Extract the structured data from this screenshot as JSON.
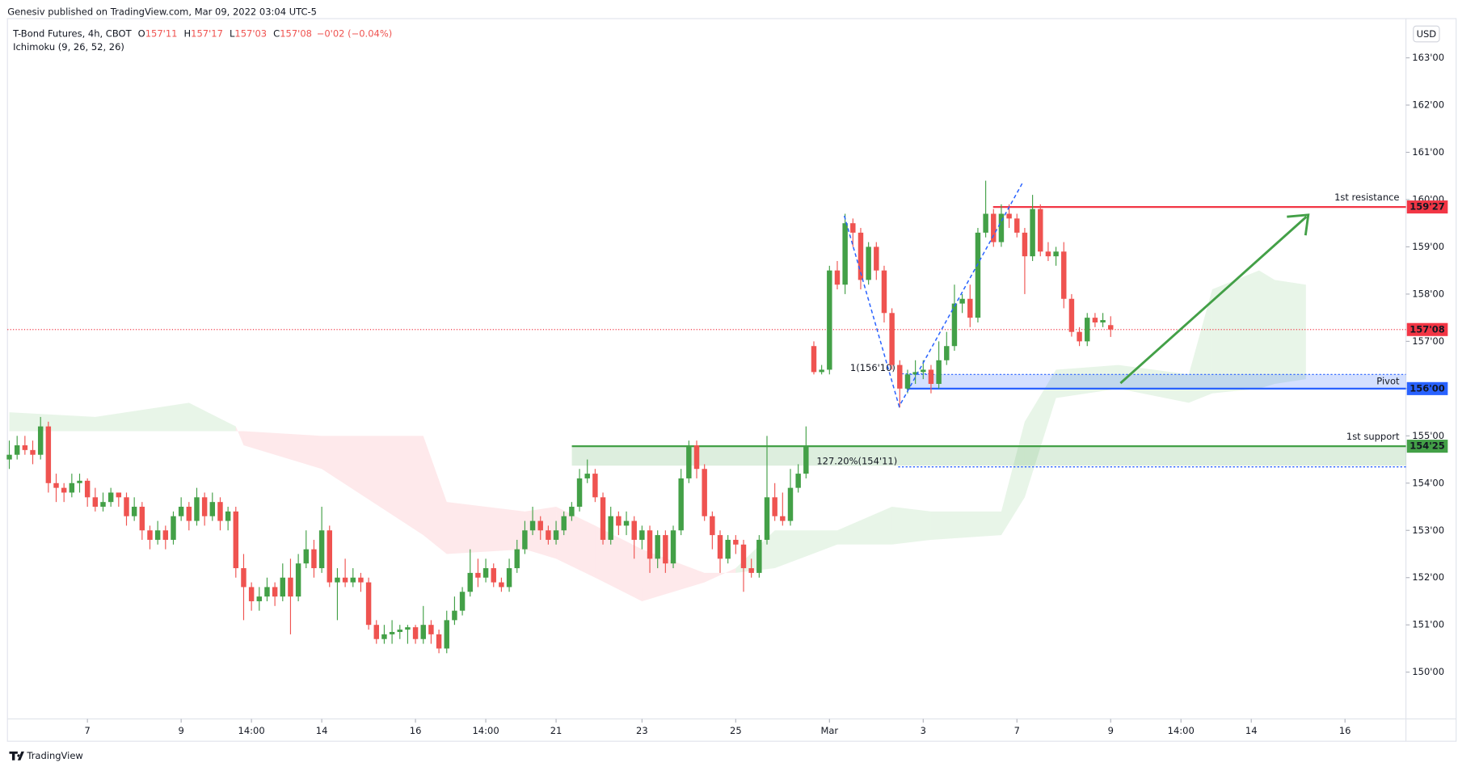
{
  "header": {
    "publisher": "Genesiv published on TradingView.com, Mar 09, 2022 03:04 UTC-5",
    "currency": "USD",
    "footer": "TradingView"
  },
  "chart_data": {
    "type": "candlestick",
    "title": "T-Bond Futures, 4h, CBOT",
    "ohlc": [
      {
        "key": "O",
        "value": "157'11"
      },
      {
        "key": "H",
        "value": "157'17"
      },
      {
        "key": "L",
        "value": "157'03"
      },
      {
        "key": "C",
        "value": "157'08"
      }
    ],
    "change": "−0'02 (−0.04%)",
    "indicator": "Ichimoku (9, 26, 52, 26)",
    "up_color": "#43a047",
    "down_color": "#ef5350",
    "xlim": [
      -0.24,
      178.8
    ],
    "ylim": [
      149.01,
      163.83
    ],
    "xticks": [
      {
        "value": 10,
        "label": "7"
      },
      {
        "value": 22,
        "label": "9"
      },
      {
        "value": 31,
        "label": "14:00"
      },
      {
        "value": 40,
        "label": "14"
      },
      {
        "value": 52,
        "label": "16"
      },
      {
        "value": 61,
        "label": "14:00"
      },
      {
        "value": 70,
        "label": "21"
      },
      {
        "value": 81,
        "label": "23"
      },
      {
        "value": 93,
        "label": "25"
      },
      {
        "value": 105,
        "label": "Mar"
      },
      {
        "value": 117,
        "label": "3"
      },
      {
        "value": 129,
        "label": "7"
      },
      {
        "value": 141,
        "label": "9"
      },
      {
        "value": 150,
        "label": "14:00"
      },
      {
        "value": 159,
        "label": "14"
      },
      {
        "value": 171,
        "label": "16"
      }
    ],
    "yticks": [
      {
        "value": 150,
        "label": "150'00"
      },
      {
        "value": 151,
        "label": "151'00"
      },
      {
        "value": 152,
        "label": "152'00"
      },
      {
        "value": 153,
        "label": "153'00"
      },
      {
        "value": 154,
        "label": "154'00"
      },
      {
        "value": 155,
        "label": "155'00"
      },
      {
        "value": 156,
        "label": "156'00"
      },
      {
        "value": 157,
        "label": "157'00"
      },
      {
        "value": 158,
        "label": "158'00"
      },
      {
        "value": 159,
        "label": "159'00"
      },
      {
        "value": 160,
        "label": "160'00"
      },
      {
        "value": 161,
        "label": "161'00"
      },
      {
        "value": 162,
        "label": "162'00"
      },
      {
        "value": 163,
        "label": "163'00"
      }
    ],
    "candles": [
      [
        154.5,
        154.9,
        154.3,
        154.6
      ],
      [
        154.6,
        155.0,
        154.5,
        154.8
      ],
      [
        154.8,
        155.0,
        154.6,
        154.7
      ],
      [
        154.7,
        154.9,
        154.4,
        154.6
      ],
      [
        154.6,
        155.4,
        154.5,
        155.2
      ],
      [
        155.2,
        155.3,
        153.8,
        154.0
      ],
      [
        154.0,
        154.2,
        153.6,
        153.9
      ],
      [
        153.9,
        154.0,
        153.6,
        153.8
      ],
      [
        153.8,
        154.2,
        153.7,
        154.0
      ],
      [
        154.0,
        154.2,
        153.8,
        154.05
      ],
      [
        154.05,
        154.1,
        153.5,
        153.7
      ],
      [
        153.7,
        153.9,
        153.4,
        153.5
      ],
      [
        153.5,
        153.8,
        153.4,
        153.6
      ],
      [
        153.6,
        153.9,
        153.5,
        153.8
      ],
      [
        153.8,
        153.8,
        153.5,
        153.7
      ],
      [
        153.7,
        153.8,
        153.1,
        153.3
      ],
      [
        153.3,
        153.7,
        153.2,
        153.5
      ],
      [
        153.5,
        153.6,
        152.8,
        153.0
      ],
      [
        153.0,
        153.1,
        152.6,
        152.8
      ],
      [
        152.8,
        153.2,
        152.7,
        153.0
      ],
      [
        153.0,
        153.1,
        152.6,
        152.8
      ],
      [
        152.8,
        153.4,
        152.7,
        153.3
      ],
      [
        153.3,
        153.7,
        153.2,
        153.5
      ],
      [
        153.5,
        153.6,
        153.0,
        153.2
      ],
      [
        153.2,
        153.9,
        153.1,
        153.7
      ],
      [
        153.7,
        153.8,
        153.1,
        153.3
      ],
      [
        153.3,
        153.8,
        153.2,
        153.6
      ],
      [
        153.6,
        153.7,
        153.0,
        153.2
      ],
      [
        153.2,
        153.5,
        153.0,
        153.4
      ],
      [
        153.4,
        153.5,
        152.0,
        152.2
      ],
      [
        152.2,
        152.5,
        151.1,
        151.8
      ],
      [
        151.8,
        151.9,
        151.3,
        151.5
      ],
      [
        151.5,
        151.8,
        151.3,
        151.6
      ],
      [
        151.6,
        152.0,
        151.5,
        151.8
      ],
      [
        151.8,
        151.9,
        151.4,
        151.6
      ],
      [
        151.6,
        152.3,
        151.5,
        152.0
      ],
      [
        152.0,
        152.4,
        150.8,
        151.6
      ],
      [
        151.6,
        152.5,
        151.5,
        152.3
      ],
      [
        152.3,
        153.0,
        152.2,
        152.6
      ],
      [
        152.6,
        152.8,
        152.0,
        152.2
      ],
      [
        152.2,
        153.5,
        152.1,
        153.0
      ],
      [
        153.0,
        153.1,
        151.8,
        151.9
      ],
      [
        151.9,
        152.2,
        151.1,
        152.0
      ],
      [
        152.0,
        152.4,
        151.8,
        151.9
      ],
      [
        151.9,
        152.2,
        151.8,
        152.0
      ],
      [
        152.0,
        152.1,
        151.7,
        151.9
      ],
      [
        151.9,
        152.0,
        150.9,
        151.0
      ],
      [
        151.0,
        151.1,
        150.6,
        150.7
      ],
      [
        150.7,
        151.0,
        150.6,
        150.8
      ],
      [
        150.8,
        151.1,
        150.6,
        150.85
      ],
      [
        150.85,
        151.0,
        150.7,
        150.9
      ],
      [
        150.9,
        151.0,
        150.6,
        150.95
      ],
      [
        150.95,
        151.0,
        150.6,
        150.7
      ],
      [
        150.7,
        151.4,
        150.6,
        151.0
      ],
      [
        151.0,
        151.1,
        150.6,
        150.8
      ],
      [
        150.8,
        150.9,
        150.4,
        150.5
      ],
      [
        150.5,
        151.3,
        150.4,
        151.1
      ],
      [
        151.1,
        151.6,
        151.0,
        151.3
      ],
      [
        151.3,
        151.8,
        151.2,
        151.7
      ],
      [
        151.7,
        152.6,
        151.6,
        152.1
      ],
      [
        152.1,
        152.4,
        151.8,
        152.0
      ],
      [
        152.0,
        152.4,
        151.9,
        152.2
      ],
      [
        152.2,
        152.3,
        151.8,
        151.9
      ],
      [
        151.9,
        152.0,
        151.7,
        151.8
      ],
      [
        151.8,
        152.4,
        151.7,
        152.2
      ],
      [
        152.2,
        152.8,
        152.1,
        152.6
      ],
      [
        152.6,
        153.2,
        152.5,
        153.0
      ],
      [
        153.0,
        153.5,
        152.9,
        153.2
      ],
      [
        153.2,
        153.3,
        152.8,
        153.0
      ],
      [
        153.0,
        153.1,
        152.7,
        152.8
      ],
      [
        152.8,
        153.2,
        152.7,
        153.0
      ],
      [
        153.0,
        153.4,
        152.9,
        153.3
      ],
      [
        153.3,
        153.6,
        153.2,
        153.5
      ],
      [
        153.5,
        154.3,
        153.4,
        154.1
      ],
      [
        154.1,
        154.5,
        154.0,
        154.2
      ],
      [
        154.2,
        154.3,
        153.6,
        153.7
      ],
      [
        153.7,
        153.8,
        152.7,
        152.8
      ],
      [
        152.8,
        153.5,
        152.7,
        153.3
      ],
      [
        153.3,
        153.4,
        152.9,
        153.1
      ],
      [
        153.1,
        153.4,
        152.9,
        153.2
      ],
      [
        153.2,
        153.3,
        152.4,
        152.8
      ],
      [
        152.8,
        153.1,
        152.6,
        153.0
      ],
      [
        153.0,
        153.1,
        152.1,
        152.4
      ],
      [
        152.4,
        153.0,
        152.2,
        152.9
      ],
      [
        152.9,
        153.0,
        152.1,
        152.3
      ],
      [
        152.3,
        153.1,
        152.2,
        153.0
      ],
      [
        153.0,
        154.3,
        152.9,
        154.1
      ],
      [
        154.1,
        154.9,
        154.0,
        154.8
      ],
      [
        154.8,
        154.9,
        154.1,
        154.3
      ],
      [
        154.3,
        154.4,
        153.2,
        153.3
      ],
      [
        153.3,
        153.4,
        152.6,
        152.9
      ],
      [
        152.9,
        153.0,
        152.1,
        152.4
      ],
      [
        152.4,
        152.9,
        152.3,
        152.8
      ],
      [
        152.8,
        152.9,
        152.5,
        152.7
      ],
      [
        152.7,
        152.8,
        151.7,
        152.2
      ],
      [
        152.2,
        152.4,
        152.0,
        152.1
      ],
      [
        152.1,
        152.9,
        152.0,
        152.8
      ],
      [
        152.8,
        155.0,
        152.7,
        153.7
      ],
      [
        153.7,
        154.0,
        153.2,
        153.3
      ],
      [
        153.3,
        153.8,
        153.1,
        153.2
      ],
      [
        153.2,
        154.3,
        153.1,
        153.9
      ],
      [
        153.9,
        154.4,
        153.8,
        154.2
      ],
      [
        154.2,
        155.2,
        154.1,
        154.8
      ],
      [
        156.9,
        157.0,
        156.3,
        156.35
      ],
      [
        156.35,
        156.5,
        156.3,
        156.4
      ],
      [
        156.4,
        158.6,
        156.3,
        158.5
      ],
      [
        158.5,
        158.7,
        158.1,
        158.2
      ],
      [
        158.2,
        159.7,
        158.0,
        159.5
      ],
      [
        159.5,
        159.6,
        159.0,
        159.3
      ],
      [
        159.3,
        159.4,
        158.1,
        158.3
      ],
      [
        158.3,
        159.1,
        158.2,
        159.0
      ],
      [
        159.0,
        159.1,
        158.3,
        158.5
      ],
      [
        158.5,
        158.6,
        157.4,
        157.6
      ],
      [
        157.6,
        157.7,
        156.4,
        156.5
      ],
      [
        156.5,
        156.6,
        155.6,
        156.0
      ],
      [
        156.0,
        156.4,
        155.9,
        156.3
      ],
      [
        156.3,
        156.6,
        156.1,
        156.35
      ],
      [
        156.35,
        156.6,
        156.2,
        156.4
      ],
      [
        156.4,
        156.5,
        155.9,
        156.1
      ],
      [
        156.1,
        157.0,
        156.0,
        156.6
      ],
      [
        156.6,
        157.2,
        156.5,
        156.9
      ],
      [
        156.9,
        158.2,
        156.8,
        157.8
      ],
      [
        157.8,
        158.0,
        157.6,
        157.9
      ],
      [
        157.9,
        158.2,
        157.3,
        157.5
      ],
      [
        157.5,
        159.4,
        157.4,
        159.3
      ],
      [
        159.3,
        160.4,
        159.2,
        159.7
      ],
      [
        159.7,
        159.8,
        159.0,
        159.1
      ],
      [
        159.1,
        159.9,
        159.0,
        159.7
      ],
      [
        159.7,
        159.9,
        159.4,
        159.6
      ],
      [
        159.6,
        159.7,
        159.2,
        159.3
      ],
      [
        159.3,
        159.4,
        158.0,
        158.8
      ],
      [
        158.8,
        160.1,
        158.7,
        159.8
      ],
      [
        159.8,
        159.9,
        158.8,
        158.9
      ],
      [
        158.9,
        159.1,
        158.7,
        158.8
      ],
      [
        158.8,
        159.0,
        158.6,
        158.9
      ],
      [
        158.9,
        159.1,
        157.7,
        157.9
      ],
      [
        157.9,
        158.0,
        157.1,
        157.2
      ],
      [
        157.2,
        157.3,
        156.9,
        157.0
      ],
      [
        157.0,
        157.6,
        156.9,
        157.5
      ],
      [
        157.5,
        157.6,
        157.3,
        157.4
      ],
      [
        157.4,
        157.6,
        157.3,
        157.45
      ],
      [
        157.34375,
        157.53125,
        157.09375,
        157.25
      ]
    ],
    "cloud": {
      "x": [
        0,
        11,
        19,
        23,
        29,
        30,
        40,
        53,
        56,
        66,
        70,
        75,
        81,
        89,
        93,
        98,
        106,
        113,
        118,
        127,
        130,
        134,
        142,
        151,
        154,
        160,
        162,
        166
      ],
      "span_a": [
        155.5,
        155.4,
        155.6,
        155.7,
        155.2,
        154.8,
        154.3,
        152.9,
        152.5,
        152.6,
        152.4,
        152.0,
        151.5,
        151.9,
        152.2,
        153.0,
        153.0,
        153.5,
        153.4,
        153.4,
        155.3,
        156.4,
        156.5,
        156.3,
        158.1,
        158.5,
        158.3,
        158.2
      ],
      "span_b": [
        155.1,
        155.1,
        155.1,
        155.1,
        155.1,
        155.1,
        155.0,
        155.0,
        153.6,
        153.4,
        153.5,
        153.1,
        152.6,
        152.1,
        152.1,
        152.2,
        152.7,
        152.7,
        152.8,
        152.9,
        153.7,
        155.8,
        156.0,
        155.7,
        155.9,
        156.0,
        156.1,
        156.2
      ],
      "up_color": "rgba(76,175,80,0.13)",
      "down_color": "rgba(242,54,69,0.11)"
    },
    "last_price": {
      "value": 157.25,
      "label": "157'08",
      "color": "#f23645"
    },
    "levels": [
      {
        "name": "1st resistance",
        "value": 159.84375,
        "label": "159'27",
        "color": "#f23645"
      },
      {
        "name": "Pivot",
        "value": 156.0,
        "top": 156.3,
        "label": "156'00",
        "color": "#2962ff"
      },
      {
        "name": "1st support",
        "value": 154.78125,
        "bottom": 154.37,
        "label": "154'25",
        "color": "#43a047"
      }
    ],
    "fib": [
      {
        "label": "1(156'10)",
        "value": 156.3125
      },
      {
        "label": "127.20%(154'11)",
        "value": 154.34375
      }
    ]
  }
}
